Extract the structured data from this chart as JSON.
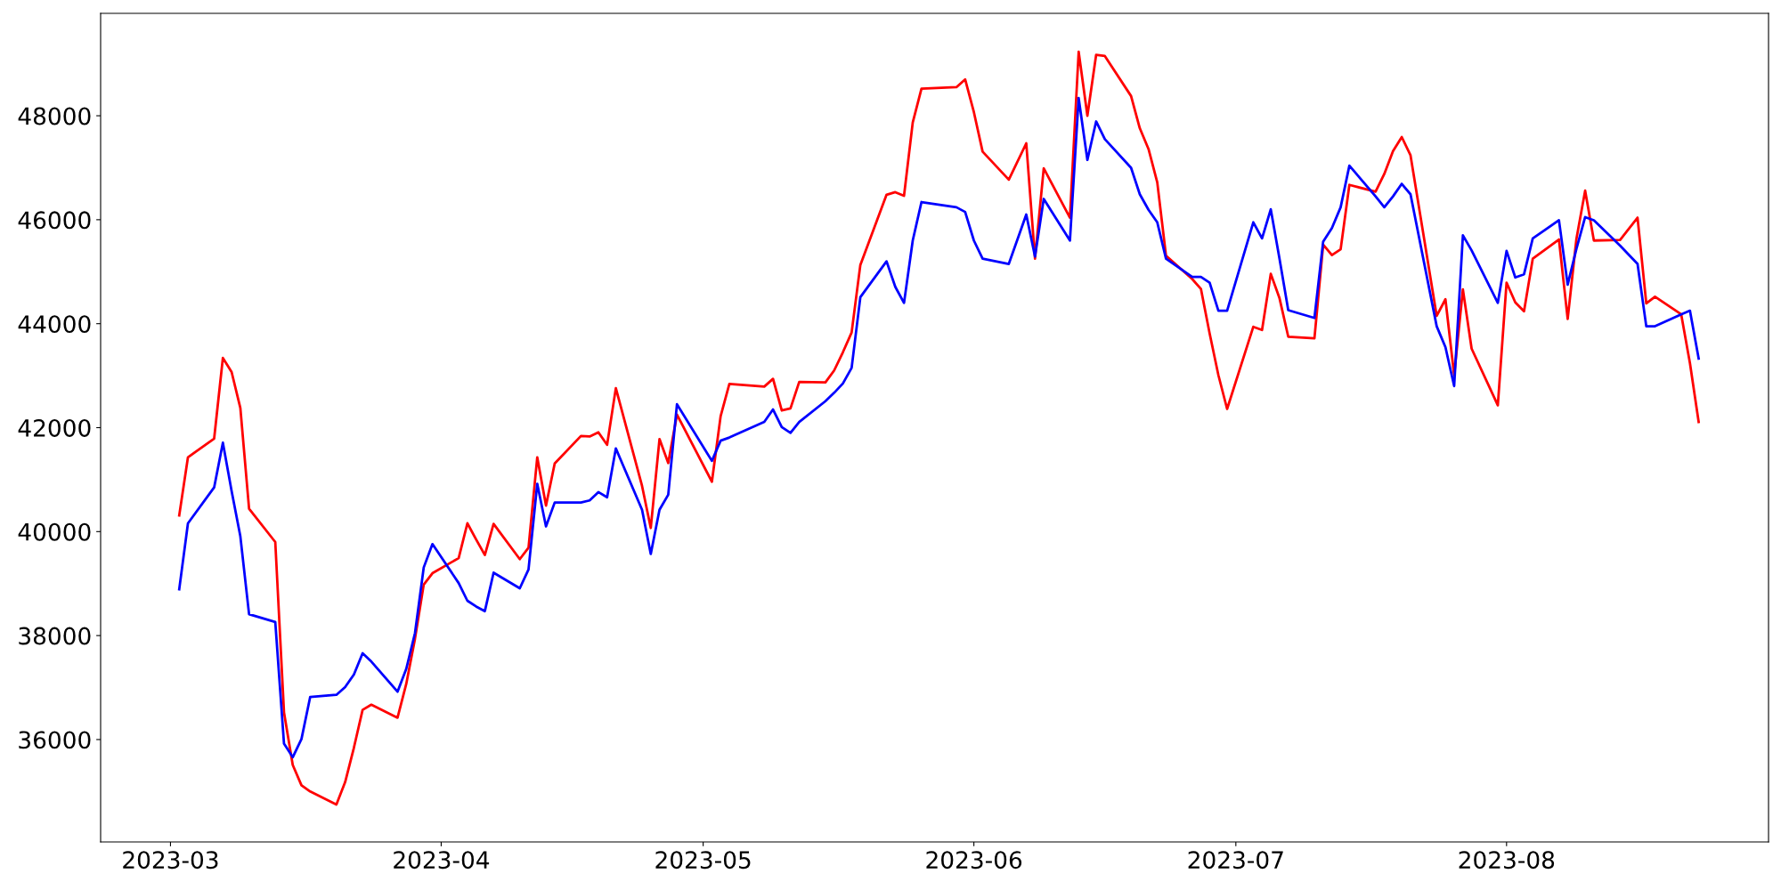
{
  "chart_data": {
    "type": "line",
    "x": [
      "2023-03-02",
      "2023-03-03",
      "2023-03-06",
      "2023-03-07",
      "2023-03-08",
      "2023-03-09",
      "2023-03-10",
      "2023-03-13",
      "2023-03-14",
      "2023-03-15",
      "2023-03-16",
      "2023-03-17",
      "2023-03-20",
      "2023-03-21",
      "2023-03-22",
      "2023-03-23",
      "2023-03-24",
      "2023-03-27",
      "2023-03-28",
      "2023-03-29",
      "2023-03-30",
      "2023-03-31",
      "2023-04-03",
      "2023-04-04",
      "2023-04-05",
      "2023-04-06",
      "2023-04-07",
      "2023-04-10",
      "2023-04-11",
      "2023-04-12",
      "2023-04-13",
      "2023-04-14",
      "2023-04-17",
      "2023-04-18",
      "2023-04-19",
      "2023-04-20",
      "2023-04-21",
      "2023-04-24",
      "2023-04-25",
      "2023-04-26",
      "2023-04-27",
      "2023-04-28",
      "2023-05-02",
      "2023-05-03",
      "2023-05-04",
      "2023-05-08",
      "2023-05-09",
      "2023-05-10",
      "2023-05-11",
      "2023-05-12",
      "2023-05-15",
      "2023-05-16",
      "2023-05-17",
      "2023-05-18",
      "2023-05-19",
      "2023-05-22",
      "2023-05-23",
      "2023-05-24",
      "2023-05-25",
      "2023-05-26",
      "2023-05-30",
      "2023-05-31",
      "2023-06-01",
      "2023-06-02",
      "2023-06-05",
      "2023-06-07",
      "2023-06-08",
      "2023-06-09",
      "2023-06-12",
      "2023-06-13",
      "2023-06-14",
      "2023-06-15",
      "2023-06-16",
      "2023-06-19",
      "2023-06-20",
      "2023-06-21",
      "2023-06-22",
      "2023-06-23",
      "2023-06-26",
      "2023-06-27",
      "2023-06-28",
      "2023-06-29",
      "2023-06-30",
      "2023-07-03",
      "2023-07-04",
      "2023-07-05",
      "2023-07-06",
      "2023-07-07",
      "2023-07-10",
      "2023-07-11",
      "2023-07-12",
      "2023-07-13",
      "2023-07-14",
      "2023-07-17",
      "2023-07-18",
      "2023-07-19",
      "2023-07-20",
      "2023-07-21",
      "2023-07-24",
      "2023-07-25",
      "2023-07-26",
      "2023-07-27",
      "2023-07-28",
      "2023-07-31",
      "2023-08-01",
      "2023-08-02",
      "2023-08-03",
      "2023-08-04",
      "2023-08-07",
      "2023-08-08",
      "2023-08-09",
      "2023-08-10",
      "2023-08-11",
      "2023-08-14",
      "2023-08-16",
      "2023-08-17",
      "2023-08-18",
      "2023-08-21",
      "2023-08-22",
      "2023-08-23"
    ],
    "series": [
      {
        "color": "#ff0000",
        "values": [
          40310,
          41430,
          41790,
          43340,
          43070,
          42380,
          40440,
          39800,
          36520,
          35510,
          35120,
          35000,
          34750,
          35180,
          35840,
          36570,
          36670,
          36420,
          37070,
          37940,
          38980,
          39200,
          39490,
          40160,
          39850,
          39550,
          40150,
          39470,
          39690,
          41430,
          40500,
          41310,
          41840,
          41830,
          41910,
          41670,
          42760,
          40880,
          40070,
          41780,
          41320,
          42250,
          40960,
          42220,
          42840,
          42790,
          42940,
          42330,
          42370,
          42880,
          42870,
          43100,
          43450,
          43830,
          45130,
          46480,
          46530,
          46460,
          47870,
          48520,
          48550,
          48700,
          48070,
          47310,
          46770,
          47470,
          45250,
          46990,
          46040,
          49230,
          48000,
          49170,
          49150,
          48380,
          47760,
          47360,
          46720,
          45310,
          44860,
          44670,
          43810,
          43010,
          42360,
          43940,
          43880,
          44960,
          44490,
          43750,
          43720,
          45520,
          45320,
          45430,
          46670,
          46540,
          46880,
          47320,
          47590,
          47240,
          44150,
          44470,
          43010,
          44660,
          43520,
          42430,
          44790,
          44410,
          44240,
          45250,
          45620,
          44090,
          45630,
          46560,
          45600,
          45610,
          46040,
          44390,
          44520,
          44180,
          43240,
          42110
        ]
      },
      {
        "color": "#0000ff",
        "values": [
          38890,
          40160,
          40850,
          41710,
          40780,
          39910,
          38410,
          38260,
          35920,
          35660,
          36010,
          36820,
          36860,
          37010,
          37250,
          37660,
          37500,
          36920,
          37360,
          38050,
          39310,
          39760,
          39010,
          38670,
          38560,
          38470,
          39210,
          38910,
          39270,
          40920,
          40100,
          40560,
          40560,
          40600,
          40760,
          40660,
          41600,
          40420,
          39570,
          40420,
          40710,
          42450,
          41360,
          41750,
          41810,
          42110,
          42350,
          42010,
          41900,
          42110,
          42510,
          42670,
          42850,
          43150,
          44510,
          45200,
          44710,
          44400,
          45600,
          46340,
          46240,
          46150,
          45600,
          45250,
          45150,
          46100,
          45290,
          46400,
          45600,
          48340,
          47150,
          47890,
          47550,
          47000,
          46490,
          46190,
          45950,
          45250,
          44900,
          44900,
          44790,
          44250,
          44250,
          45950,
          45640,
          46200,
          45250,
          44260,
          44110,
          45580,
          45840,
          46240,
          47040,
          46450,
          46240,
          46450,
          46690,
          46490,
          43950,
          43550,
          42800,
          45700,
          45410,
          44400,
          45400,
          44890,
          44950,
          45640,
          45990,
          44750,
          45440,
          46050,
          45990,
          45500,
          45150,
          43950,
          43950,
          44180,
          44250,
          43330
        ]
      }
    ],
    "xlim": [
      "2023-02-21",
      "2023-08-31"
    ],
    "xticks": [
      "2023-03",
      "2023-04",
      "2023-05",
      "2023-06",
      "2023-07",
      "2023-08"
    ],
    "ylim": [
      34030,
      49970
    ],
    "yticks": [
      36000,
      38000,
      40000,
      42000,
      44000,
      46000,
      48000
    ],
    "grid": false,
    "line_style": "solid",
    "marker": "none"
  }
}
